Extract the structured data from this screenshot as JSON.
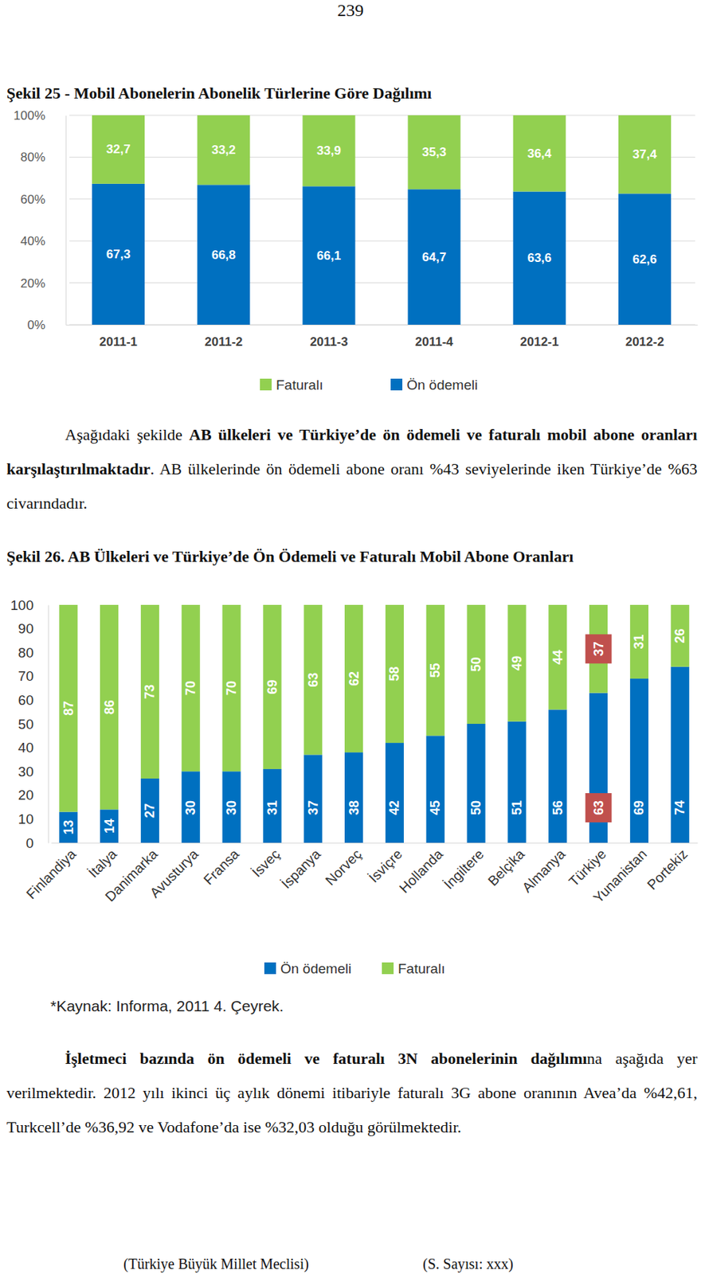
{
  "page_number": "239",
  "paragraphs": [
    {
      "runs": [
        {
          "text": "Aşağıdaki şekilde ",
          "bold": false
        },
        {
          "text": "AB ülkeleri ve Türkiye’de ön ödemeli ve faturalı mobil abone oranları karşılaştırılmaktadır",
          "bold": true
        },
        {
          "text": ". AB ülkelerinde ön ödemeli abone oranı %43 seviyelerinde iken Türkiye’de %63 civarındadır.",
          "bold": false
        }
      ]
    },
    {
      "runs": [
        {
          "text": "İşletmeci bazında ön ödemeli ve faturalı 3N abonelerinin dağılımı",
          "bold": true
        },
        {
          "text": "na aşağıda yer verilmektedir. 2012 yılı ikinci üç aylık dönemi itibariyle faturalı 3G abone oranının Avea’da %42,61, Turkcell’de %36,92 ve Vodafone’da ise %32,03 olduğu görülmektedir.",
          "bold": false
        }
      ]
    }
  ],
  "footer": [
    "(Türkiye Büyük Millet Meclisi)",
    "(S. Sayısı: xxx)"
  ],
  "chart_data": [
    {
      "type": "bar",
      "title": "Şekil 25 - Mobil Abonelerin Abonelik Türlerine Göre Dağılımı",
      "categories": [
        "2011-1",
        "2011-2",
        "2011-3",
        "2011-4",
        "2012-1",
        "2012-2"
      ],
      "series": [
        {
          "name": "Faturalı",
          "color": "#92d050",
          "values": [
            32.7,
            33.2,
            33.9,
            35.3,
            36.4,
            37.4
          ],
          "value_labels": [
            "32,7",
            "33,2",
            "33,9",
            "35,3",
            "36,4",
            "37,4"
          ]
        },
        {
          "name": "Ön ödemeli",
          "color": "#0070c0",
          "values": [
            67.3,
            66.8,
            66.1,
            64.7,
            63.6,
            62.6
          ],
          "value_labels": [
            "67,3",
            "66,8",
            "66,1",
            "64,7",
            "63,6",
            "62,6"
          ]
        }
      ],
      "ylim": [
        0,
        100
      ],
      "yticks": [
        {
          "value": 0,
          "label": "0%"
        },
        {
          "value": 20,
          "label": "20%"
        },
        {
          "value": 40,
          "label": "40%"
        },
        {
          "value": 60,
          "label": "60%"
        },
        {
          "value": 80,
          "label": "80%"
        },
        {
          "value": 100,
          "label": "100%"
        }
      ],
      "stacked": true,
      "data_labels": true,
      "grid": true,
      "legend": "bottom"
    },
    {
      "type": "bar",
      "title": "Şekil 26. AB Ülkeleri ve Türkiye’de Ön Ödemeli ve Faturalı Mobil Abone Oranları",
      "categories": [
        "Finlandiya",
        "İtalya",
        "Danimarka",
        "Avusturya",
        "Fransa",
        "İsveç",
        "İspanya",
        "Norveç",
        "İsviçre",
        "Hollanda",
        "İngiltere",
        "Belçika",
        "Almanya",
        "Türkiye",
        "Yunanistan",
        "Portekiz"
      ],
      "series": [
        {
          "name": "Ön ödemeli",
          "color": "#0070c0",
          "values": [
            13,
            14,
            27,
            30,
            30,
            31,
            37,
            38,
            42,
            45,
            50,
            51,
            56,
            63,
            69,
            74
          ]
        },
        {
          "name": "Faturalı",
          "color": "#92d050",
          "values": [
            87,
            86,
            73,
            70,
            70,
            69,
            63,
            62,
            58,
            55,
            50,
            49,
            44,
            37,
            31,
            26
          ]
        }
      ],
      "ylim": [
        0,
        100
      ],
      "yticks": [
        0,
        10,
        20,
        30,
        40,
        50,
        60,
        70,
        80,
        90,
        100
      ],
      "stacked": true,
      "data_labels": true,
      "grid": false,
      "legend": "bottom",
      "annotations": [
        "*Kaynak: Informa, 2011 4. Çeyrek."
      ]
    }
  ]
}
